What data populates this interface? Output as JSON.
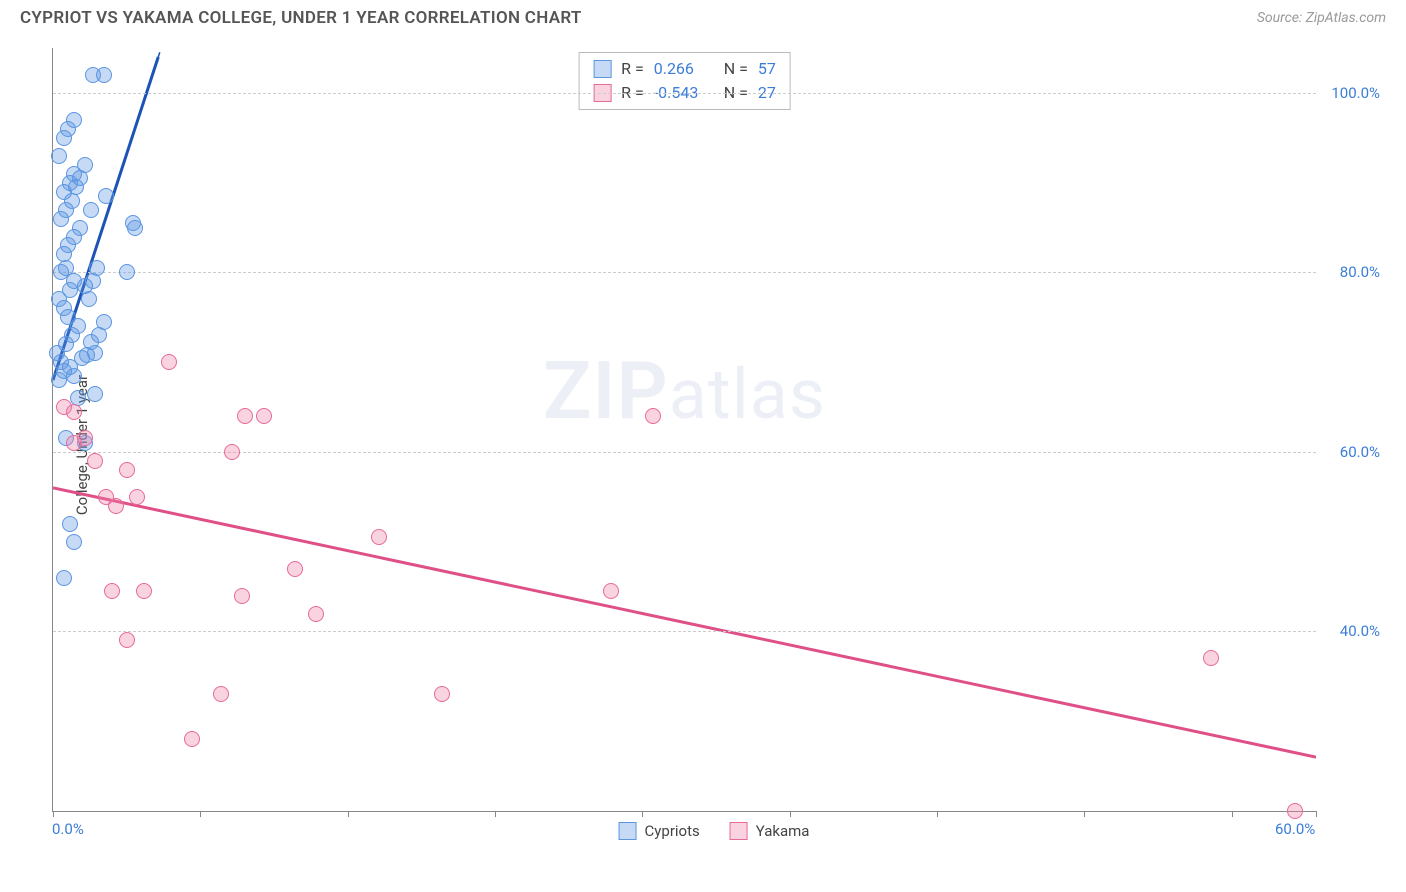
{
  "title": "CYPRIOT VS YAKAMA COLLEGE, UNDER 1 YEAR CORRELATION CHART",
  "source": "Source: ZipAtlas.com",
  "ylabel": "College, Under 1 year",
  "watermark": {
    "z": "ZIP",
    "rest": "atlas"
  },
  "chart": {
    "type": "scatter",
    "xlim": [
      0,
      60
    ],
    "ylim": [
      20,
      105
    ],
    "xticks": [
      0,
      7,
      14,
      21,
      28,
      35,
      42,
      49,
      56,
      60
    ],
    "xtick_labels": {
      "0": "0.0%",
      "60": "60.0%"
    },
    "yticks": [
      40,
      60,
      80,
      100
    ],
    "ytick_labels": [
      "40.0%",
      "60.0%",
      "80.0%",
      "100.0%"
    ],
    "grid_color": "#cccccc",
    "axis_color": "#888888",
    "background_color": "#ffffff",
    "axis_label_color": "#3b7dd8",
    "point_radius": 8,
    "series": [
      {
        "name": "Cypriots",
        "color_fill": "rgba(91,150,225,0.35)",
        "color_stroke": "#5b96e1",
        "trend_color": "#1c53b5",
        "trend_width": 3,
        "trend_dash_extend": true,
        "R": 0.266,
        "N": 57,
        "trend_line": {
          "x1": 0,
          "y1": 68,
          "x2": 5,
          "y2": 104
        },
        "points": [
          [
            0.3,
            68
          ],
          [
            0.5,
            69
          ],
          [
            0.8,
            69.5
          ],
          [
            1.0,
            68.5
          ],
          [
            0.4,
            70
          ],
          [
            0.2,
            71
          ],
          [
            0.6,
            72
          ],
          [
            0.9,
            73
          ],
          [
            1.2,
            74
          ],
          [
            0.7,
            75
          ],
          [
            0.5,
            76
          ],
          [
            0.3,
            77
          ],
          [
            0.8,
            78
          ],
          [
            1.5,
            78.5
          ],
          [
            1.0,
            79
          ],
          [
            0.4,
            80
          ],
          [
            0.6,
            80.5
          ],
          [
            3.5,
            80
          ],
          [
            0.5,
            82
          ],
          [
            0.7,
            83
          ],
          [
            1.0,
            84
          ],
          [
            1.3,
            85
          ],
          [
            0.4,
            86
          ],
          [
            0.6,
            87
          ],
          [
            1.8,
            87
          ],
          [
            2.5,
            88.5
          ],
          [
            0.5,
            89
          ],
          [
            0.8,
            90
          ],
          [
            1.0,
            91
          ],
          [
            1.5,
            92
          ],
          [
            0.3,
            93
          ],
          [
            3.8,
            85.5
          ],
          [
            3.9,
            85
          ],
          [
            0.5,
            95
          ],
          [
            0.7,
            96
          ],
          [
            1.0,
            97
          ],
          [
            1.9,
            102
          ],
          [
            2.4,
            102
          ],
          [
            1.2,
            66
          ],
          [
            2.0,
            66.5
          ],
          [
            1.5,
            61
          ],
          [
            0.6,
            61.5
          ],
          [
            0.8,
            52
          ],
          [
            1.0,
            50
          ],
          [
            0.5,
            46
          ],
          [
            1.4,
            70.5
          ],
          [
            1.6,
            70.8
          ],
          [
            1.8,
            72.2
          ],
          [
            2.0,
            71
          ],
          [
            2.2,
            73
          ],
          [
            2.4,
            74.5
          ],
          [
            0.9,
            88
          ],
          [
            1.1,
            89.5
          ],
          [
            1.3,
            90.5
          ],
          [
            1.7,
            77
          ],
          [
            1.9,
            79
          ],
          [
            2.1,
            80.5
          ]
        ]
      },
      {
        "name": "Yakama",
        "color_fill": "rgba(240,130,170,0.35)",
        "color_stroke": "#e76a9a",
        "trend_color": "#e05088",
        "trend_width": 3,
        "trend_dash_extend": false,
        "R": -0.543,
        "N": 27,
        "trend_line": {
          "x1": 0,
          "y1": 56,
          "x2": 60,
          "y2": 26
        },
        "points": [
          [
            0.5,
            65
          ],
          [
            1.0,
            61
          ],
          [
            1.5,
            61.5
          ],
          [
            2.0,
            59
          ],
          [
            2.5,
            55
          ],
          [
            3.0,
            54
          ],
          [
            3.5,
            58
          ],
          [
            4.0,
            55
          ],
          [
            5.5,
            70
          ],
          [
            2.8,
            44.5
          ],
          [
            4.3,
            44.5
          ],
          [
            8.5,
            60
          ],
          [
            9.1,
            64
          ],
          [
            9.0,
            44
          ],
          [
            10.0,
            64
          ],
          [
            11.5,
            47
          ],
          [
            12.5,
            42
          ],
          [
            15.5,
            50.5
          ],
          [
            18.5,
            33
          ],
          [
            8.0,
            33
          ],
          [
            6.6,
            28
          ],
          [
            3.5,
            39
          ],
          [
            26.5,
            44.5
          ],
          [
            28.5,
            64
          ],
          [
            55,
            37
          ],
          [
            59,
            20
          ],
          [
            1.0,
            64.5
          ]
        ]
      }
    ]
  },
  "legend_top": [
    {
      "swatch_fill": "rgba(91,150,225,0.35)",
      "swatch_stroke": "#5b96e1",
      "R_label": "R =",
      "R": "0.266",
      "N_label": "N =",
      "N": "57"
    },
    {
      "swatch_fill": "rgba(240,130,170,0.35)",
      "swatch_stroke": "#e76a9a",
      "R_label": "R =",
      "R": "-0.543",
      "N_label": "N =",
      "N": "27"
    }
  ],
  "legend_bottom": [
    {
      "swatch_fill": "rgba(91,150,225,0.35)",
      "swatch_stroke": "#5b96e1",
      "label": "Cypriots"
    },
    {
      "swatch_fill": "rgba(240,130,170,0.35)",
      "swatch_stroke": "#e76a9a",
      "label": "Yakama"
    }
  ]
}
